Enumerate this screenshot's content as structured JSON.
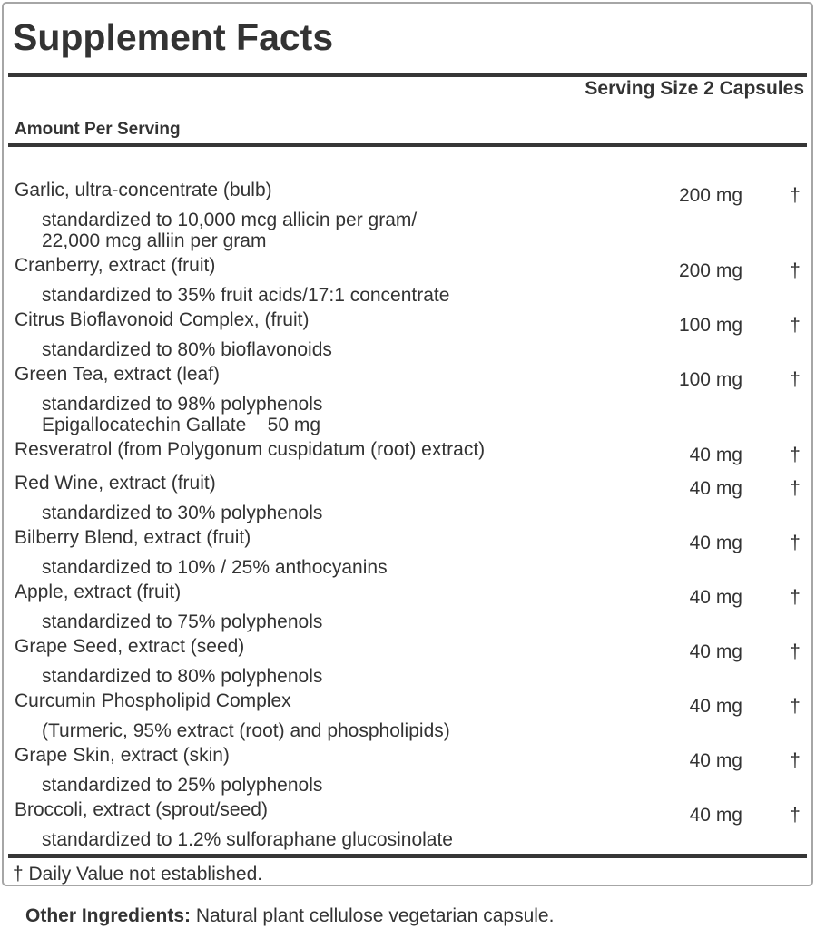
{
  "colors": {
    "text": "#333333",
    "rule": "#363636",
    "panel_border": "#a6a6a6",
    "background": "#ffffff"
  },
  "panel": {
    "title": "Supplement Facts",
    "serving_size": "Serving Size 2 Capsules",
    "amount_header": "Amount Per Serving",
    "footnote": "† Daily Value not established.",
    "rows": [
      {
        "name": "Garlic, ultra-concentrate (bulb)",
        "amount": "200 mg",
        "daily_value": "†",
        "details": [
          "standardized to 10,000 mcg allicin per gram/",
          "22,000 mcg alliin per gram"
        ]
      },
      {
        "name": "Cranberry, extract (fruit)",
        "amount": "200 mg",
        "daily_value": "†",
        "details": [
          "standardized to 35% fruit acids/17:1 concentrate"
        ]
      },
      {
        "name": "Citrus Bioflavonoid Complex, (fruit)",
        "amount": "100 mg",
        "daily_value": "†",
        "details": [
          "standardized to 80% bioflavonoids"
        ]
      },
      {
        "name": "Green Tea, extract (leaf)",
        "amount": "100 mg",
        "daily_value": "†",
        "details": [
          "standardized to 98% polyphenols",
          "Epigallocatechin Gallate    50 mg"
        ]
      },
      {
        "name": "Resveratrol (from Polygonum cuspidatum (root) extract)",
        "amount": "40 mg",
        "daily_value": "†",
        "details": []
      },
      {
        "name": "Red Wine, extract (fruit)",
        "amount": "40 mg",
        "daily_value": "†",
        "details": [
          "standardized to 30% polyphenols"
        ]
      },
      {
        "name": "Bilberry Blend, extract (fruit)",
        "amount": "40 mg",
        "daily_value": "†",
        "details": [
          "standardized to 10% / 25% anthocyanins"
        ]
      },
      {
        "name": "Apple, extract (fruit)",
        "amount": "40 mg",
        "daily_value": "†",
        "details": [
          "standardized to 75% polyphenols"
        ]
      },
      {
        "name": "Grape Seed, extract (seed)",
        "amount": "40 mg",
        "daily_value": "†",
        "details": [
          "standardized to 80% polyphenols"
        ]
      },
      {
        "name": "Curcumin Phospholipid Complex",
        "amount": "40 mg",
        "daily_value": "†",
        "details": [
          "(Turmeric, 95% extract (root) and phospholipids)"
        ]
      },
      {
        "name": "Grape Skin, extract (skin)",
        "amount": "40 mg",
        "daily_value": "†",
        "details": [
          "standardized to 25% polyphenols"
        ]
      },
      {
        "name": "Broccoli, extract (sprout/seed)",
        "amount": "40 mg",
        "daily_value": "†",
        "details": [
          "standardized to 1.2% sulforaphane glucosinolate"
        ]
      }
    ]
  },
  "footer": {
    "other_ingredients_label": "Other Ingredients:",
    "other_ingredients_text": " Natural plant cellulose vegetarian capsule."
  }
}
